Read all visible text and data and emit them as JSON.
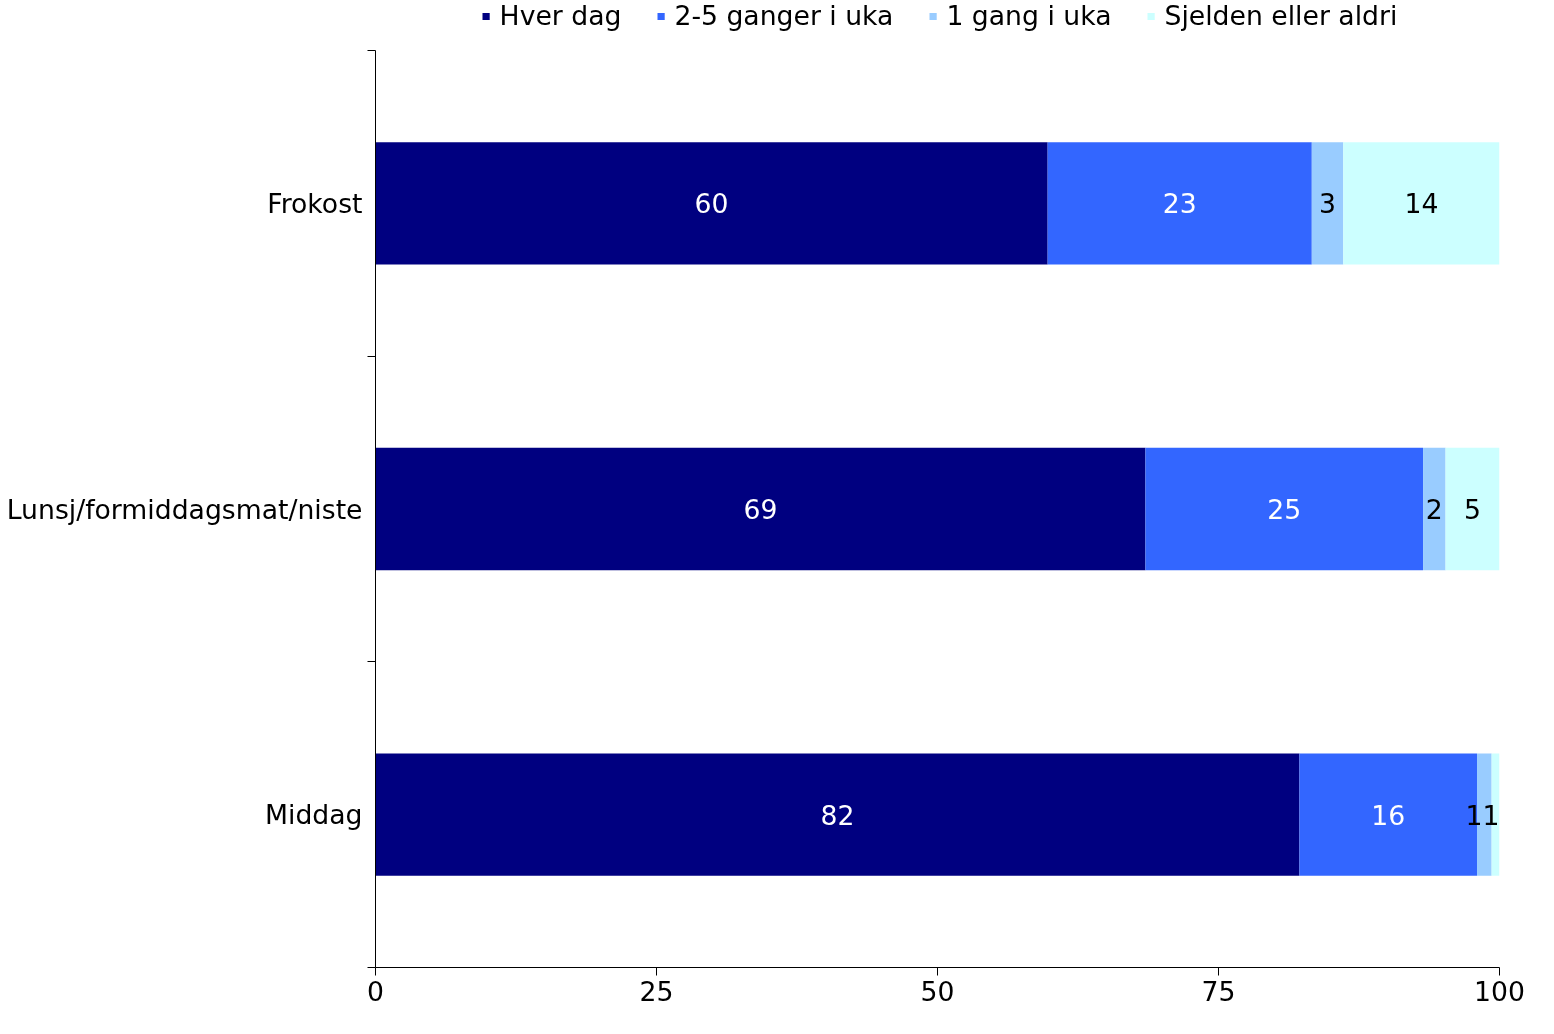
{
  "chart_data": {
    "type": "bar",
    "orientation": "horizontal",
    "stacked": true,
    "legend": "top",
    "categories": [
      "Frokost",
      "Lunsj/formiddagsmat/niste",
      "Middag"
    ],
    "series": [
      {
        "name": "Hver dag",
        "color": "#000080",
        "values": [
          59.8,
          68.5,
          82.2
        ],
        "value_labels": [
          "60",
          "69",
          "82"
        ]
      },
      {
        "name": "2-5 ganger i uka",
        "color": "#3366ff",
        "values": [
          23.5,
          24.7,
          15.8
        ],
        "value_labels": [
          "23",
          "25",
          "16"
        ]
      },
      {
        "name": "1 gang i uka",
        "color": "#99ccff",
        "values": [
          2.8,
          2.0,
          1.3
        ],
        "value_labels": [
          "3",
          "2",
          "1"
        ]
      },
      {
        "name": "Sjelden eller aldri",
        "color": "#ccffff",
        "values": [
          13.9,
          4.8,
          0.7
        ],
        "value_labels": [
          "14",
          "5",
          "1"
        ]
      }
    ],
    "xlim": [
      0,
      100
    ],
    "xticks": [
      0,
      25,
      50,
      75,
      100
    ],
    "grid": false
  }
}
